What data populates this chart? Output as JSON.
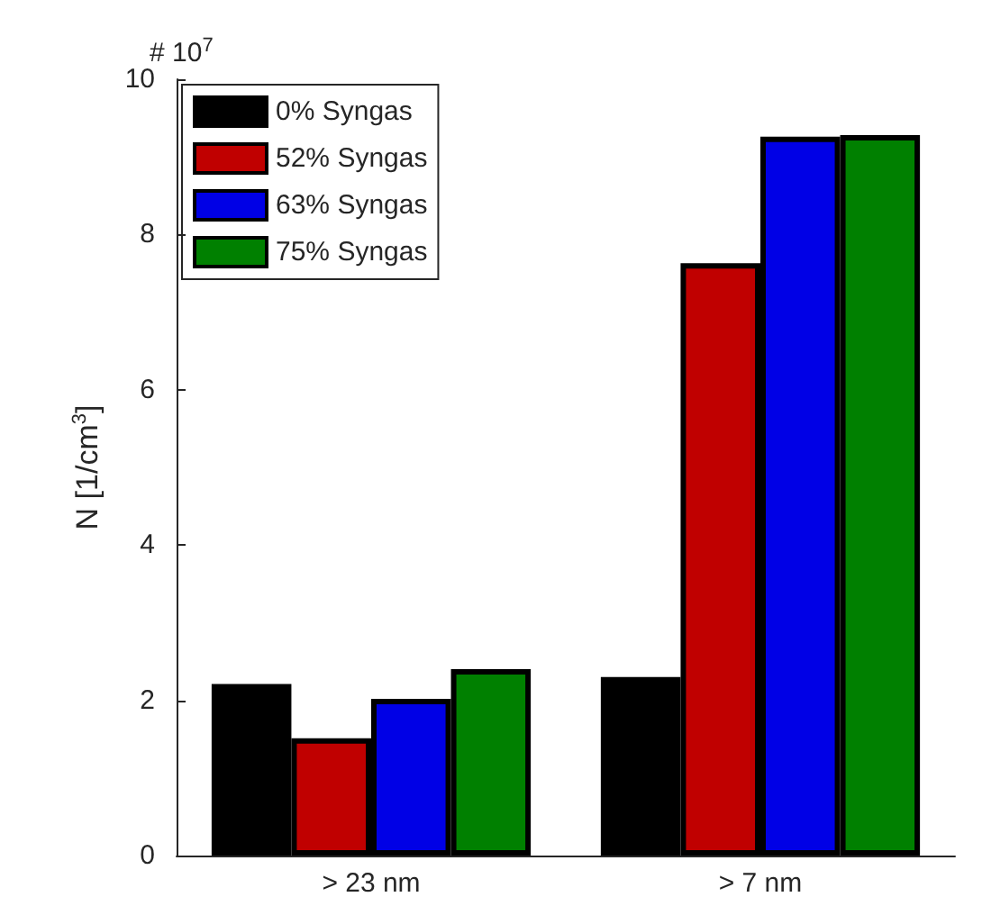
{
  "chart_data": {
    "type": "bar",
    "ylabel": "N [1/cm$^{3}$]",
    "annotations": [
      "# 10$^{7}$"
    ],
    "categories": [
      "> 23 nm",
      "> 7 nm"
    ],
    "series": [
      {
        "name": "0% Syngas",
        "color": "#000000",
        "values": [
          2.21,
          2.3
        ]
      },
      {
        "name": "52% Syngas",
        "color": "#c00000",
        "values": [
          1.51,
          7.63
        ]
      },
      {
        "name": "63% Syngas",
        "color": "#0000e6",
        "values": [
          2.02,
          9.26
        ]
      },
      {
        "name": "75% Syngas",
        "color": "#008000",
        "values": [
          2.4,
          9.28
        ]
      }
    ],
    "ylim": [
      0,
      10
    ],
    "yticks": [
      0,
      2,
      4,
      6,
      8,
      10
    ],
    "grid": false,
    "legend": "top left"
  }
}
